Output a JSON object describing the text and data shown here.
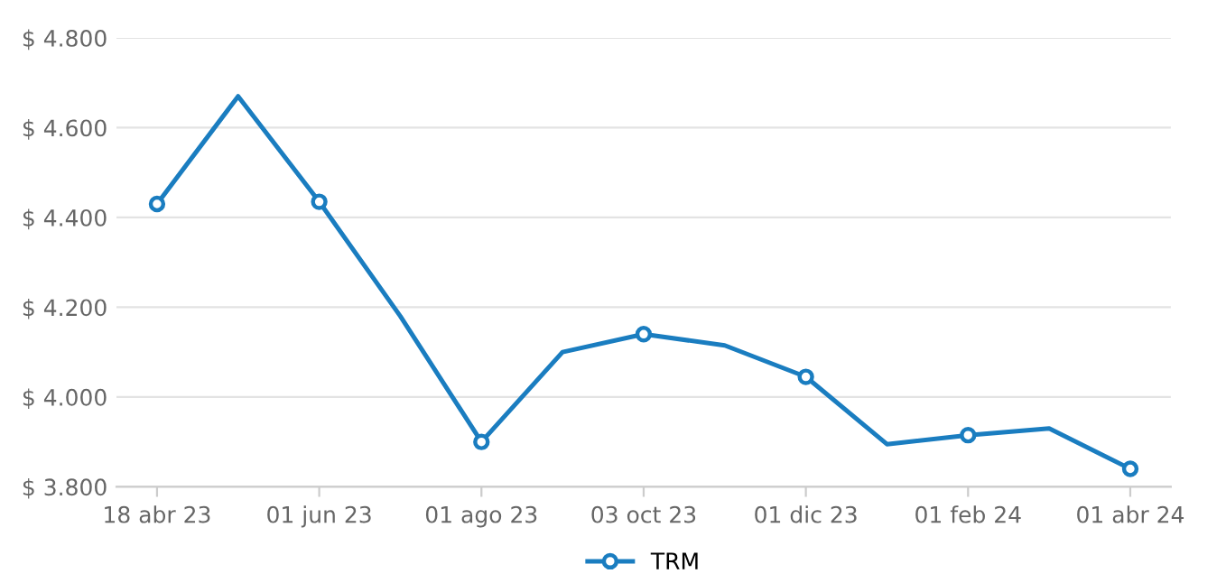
{
  "chart_data": {
    "type": "line",
    "categories": [
      "18 abr 23",
      null,
      "01 jun 23",
      null,
      "01 ago 23",
      null,
      "03 oct 23",
      null,
      "01 dic 23",
      null,
      "01 feb 24",
      null,
      "01 abr 24"
    ],
    "series": [
      {
        "name": "TRM",
        "color": "#1a7dc0",
        "values": [
          4430,
          4670,
          4435,
          4180,
          3900,
          4100,
          4140,
          4115,
          4045,
          3895,
          3915,
          3930,
          3840
        ]
      }
    ],
    "ylim": [
      3800,
      4800
    ],
    "yticks": [
      {
        "value": 3800,
        "label": "$ 3.800"
      },
      {
        "value": 4000,
        "label": "$ 4.000"
      },
      {
        "value": 4200,
        "label": "$ 4.200"
      },
      {
        "value": 4400,
        "label": "$ 4.400"
      },
      {
        "value": 4600,
        "label": "$ 4.600"
      },
      {
        "value": 4800,
        "label": "$ 4.800"
      }
    ],
    "grid": "y",
    "legend": "bottom",
    "marker": "circle",
    "line_style": "solid"
  }
}
